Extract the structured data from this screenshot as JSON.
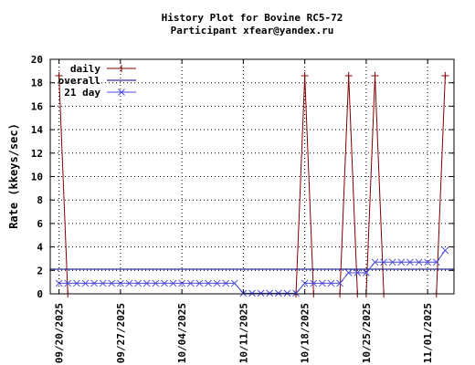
{
  "chart_data": {
    "type": "line",
    "title": "History Plot for Bovine RC5-72",
    "subtitle": "Participant xfear@yandex.ru",
    "xlabel": "",
    "ylabel": "Rate (kkeys/sec)",
    "ylim": [
      0,
      20
    ],
    "yticks": [
      0,
      2,
      4,
      6,
      8,
      10,
      12,
      14,
      16,
      18,
      20
    ],
    "xlim": [
      "2025-09-19",
      "2025-11-04"
    ],
    "xticks": [
      "09/20/2025",
      "09/27/2025",
      "10/04/2025",
      "10/11/2025",
      "10/18/2025",
      "10/25/2025",
      "11/01/2025"
    ],
    "xtick_dates": [
      "2025-09-20",
      "2025-09-27",
      "2025-10-04",
      "2025-10-11",
      "2025-10-18",
      "2025-10-25",
      "2025-11-01"
    ],
    "grid": true,
    "legend_position": "top-left",
    "series": [
      {
        "name": "daily",
        "color": "#800000",
        "marker": "plus",
        "points": [
          [
            "2025-09-20",
            18.6
          ],
          [
            "2025-09-21",
            0
          ],
          [
            "2025-10-17",
            0
          ],
          [
            "2025-10-18",
            18.6
          ],
          [
            "2025-10-19",
            0
          ],
          [
            "2025-10-22",
            0
          ],
          [
            "2025-10-23",
            18.6
          ],
          [
            "2025-10-24",
            0
          ],
          [
            "2025-10-25",
            0
          ],
          [
            "2025-10-26",
            18.6
          ],
          [
            "2025-10-27",
            0
          ],
          [
            "2025-11-02",
            0
          ],
          [
            "2025-11-03",
            18.6
          ]
        ]
      },
      {
        "name": "overall",
        "color": "#000080",
        "marker": "none",
        "value": 2.1
      },
      {
        "name": "21 day",
        "color": "#4a4ad8",
        "marker": "x",
        "points": [
          [
            "2025-09-20",
            0.9
          ],
          [
            "2025-09-21",
            0.9
          ],
          [
            "2025-09-22",
            0.9
          ],
          [
            "2025-09-23",
            0.9
          ],
          [
            "2025-09-24",
            0.9
          ],
          [
            "2025-09-25",
            0.9
          ],
          [
            "2025-09-26",
            0.9
          ],
          [
            "2025-09-27",
            0.9
          ],
          [
            "2025-09-28",
            0.9
          ],
          [
            "2025-09-29",
            0.9
          ],
          [
            "2025-09-30",
            0.9
          ],
          [
            "2025-10-01",
            0.9
          ],
          [
            "2025-10-02",
            0.9
          ],
          [
            "2025-10-03",
            0.9
          ],
          [
            "2025-10-04",
            0.9
          ],
          [
            "2025-10-05",
            0.9
          ],
          [
            "2025-10-06",
            0.9
          ],
          [
            "2025-10-07",
            0.9
          ],
          [
            "2025-10-08",
            0.9
          ],
          [
            "2025-10-09",
            0.9
          ],
          [
            "2025-10-10",
            0.9
          ],
          [
            "2025-10-11",
            0.05
          ],
          [
            "2025-10-12",
            0.05
          ],
          [
            "2025-10-13",
            0.05
          ],
          [
            "2025-10-14",
            0.05
          ],
          [
            "2025-10-15",
            0.05
          ],
          [
            "2025-10-16",
            0.05
          ],
          [
            "2025-10-17",
            0.05
          ],
          [
            "2025-10-18",
            0.9
          ],
          [
            "2025-10-19",
            0.9
          ],
          [
            "2025-10-20",
            0.9
          ],
          [
            "2025-10-21",
            0.9
          ],
          [
            "2025-10-22",
            0.9
          ],
          [
            "2025-10-23",
            1.8
          ],
          [
            "2025-10-24",
            1.8
          ],
          [
            "2025-10-25",
            1.8
          ],
          [
            "2025-10-26",
            2.7
          ],
          [
            "2025-10-27",
            2.7
          ],
          [
            "2025-10-28",
            2.7
          ],
          [
            "2025-10-29",
            2.7
          ],
          [
            "2025-10-30",
            2.7
          ],
          [
            "2025-10-31",
            2.7
          ],
          [
            "2025-11-01",
            2.7
          ],
          [
            "2025-11-02",
            2.7
          ],
          [
            "2025-11-03",
            3.7
          ]
        ]
      }
    ]
  }
}
